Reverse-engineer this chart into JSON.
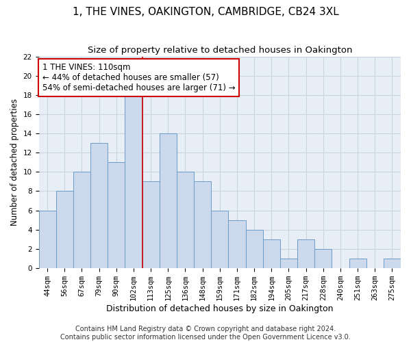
{
  "title": "1, THE VINES, OAKINGTON, CAMBRIDGE, CB24 3XL",
  "subtitle": "Size of property relative to detached houses in Oakington",
  "xlabel": "Distribution of detached houses by size in Oakington",
  "ylabel": "Number of detached properties",
  "bar_labels": [
    "44sqm",
    "56sqm",
    "67sqm",
    "79sqm",
    "90sqm",
    "102sqm",
    "113sqm",
    "125sqm",
    "136sqm",
    "148sqm",
    "159sqm",
    "171sqm",
    "182sqm",
    "194sqm",
    "205sqm",
    "217sqm",
    "228sqm",
    "240sqm",
    "251sqm",
    "263sqm",
    "275sqm"
  ],
  "bar_values": [
    6,
    8,
    10,
    13,
    11,
    18,
    9,
    14,
    10,
    9,
    6,
    5,
    4,
    3,
    1,
    3,
    2,
    0,
    1,
    0,
    1
  ],
  "bar_color": "#ccd9ec",
  "bar_edge_color": "#6a9cc8",
  "grid_color": "#c8d4e0",
  "background_color": "#e8eef6",
  "annotation_text": "1 THE VINES: 110sqm\n← 44% of detached houses are smaller (57)\n54% of semi-detached houses are larger (71) →",
  "annotation_box_color": "white",
  "annotation_box_edge": "#cc0000",
  "vline_color": "#cc0000",
  "vline_x": 5.5,
  "ylim": [
    0,
    22
  ],
  "yticks": [
    0,
    2,
    4,
    6,
    8,
    10,
    12,
    14,
    16,
    18,
    20,
    22
  ],
  "footnote": "Contains HM Land Registry data © Crown copyright and database right 2024.\nContains public sector information licensed under the Open Government Licence v3.0.",
  "title_fontsize": 11,
  "subtitle_fontsize": 9.5,
  "xlabel_fontsize": 9,
  "ylabel_fontsize": 8.5,
  "tick_fontsize": 7.5,
  "annotation_fontsize": 8.5,
  "footnote_fontsize": 7
}
